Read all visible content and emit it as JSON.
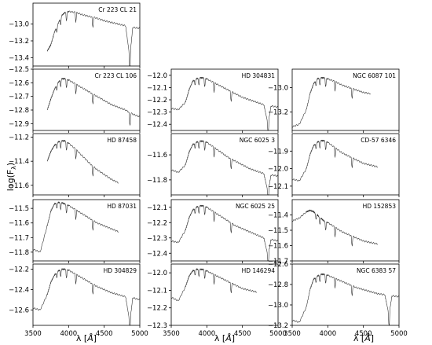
{
  "figure": {
    "ylabel": "log(Fλ)",
    "ylabel_main": "log(F",
    "ylabel_sub": "λ",
    "ylabel_close": ")"
  },
  "chart_data": [
    {
      "type": "line",
      "title": "Cr 223 CL 21",
      "ylim": [
        -13.5,
        -12.75
      ],
      "yticks": [
        -13.4,
        -13.2,
        -13.0
      ],
      "ytick_labels": [
        "−13.4",
        "−13.2",
        "−13.0"
      ],
      "xlim": [
        3500,
        5000
      ],
      "series": [
        {
          "name": "Cr 223 CL 21",
          "x": [
            3700,
            3750,
            3800,
            3850,
            3900,
            3950,
            4000,
            4100,
            4200,
            4300,
            4400,
            4500,
            4600,
            4700,
            4800,
            4860,
            4900,
            5000
          ],
          "y": [
            -13.32,
            -13.25,
            -13.1,
            -13.0,
            -12.9,
            -12.86,
            -12.85,
            -12.86,
            -12.89,
            -12.91,
            -12.93,
            -12.96,
            -12.98,
            -13.0,
            -13.02,
            -13.4,
            -13.04,
            -13.05
          ]
        }
      ]
    },
    {
      "type": "line",
      "title": "Cr 223 CL 106",
      "ylim": [
        -12.95,
        -12.5
      ],
      "yticks": [
        -12.9,
        -12.8,
        -12.7,
        -12.6,
        -12.5
      ],
      "ytick_labels": [
        "−12.9",
        "−12.8",
        "−12.7",
        "−12.6",
        "−12.5"
      ],
      "xlim": [
        3500,
        5000
      ],
      "series": [
        {
          "name": "Cr 223 CL 106",
          "x": [
            3700,
            3750,
            3800,
            3850,
            3900,
            3950,
            4000,
            4100,
            4200,
            4300,
            4400,
            4500,
            4600,
            4700,
            4800,
            4900,
            5000
          ],
          "y": [
            -12.8,
            -12.72,
            -12.65,
            -12.6,
            -12.57,
            -12.57,
            -12.58,
            -12.61,
            -12.64,
            -12.67,
            -12.7,
            -12.73,
            -12.76,
            -12.78,
            -12.8,
            -12.83,
            -12.85
          ]
        }
      ]
    },
    {
      "type": "line",
      "title": "HD 304831",
      "ylim": [
        -12.45,
        -11.95
      ],
      "yticks": [
        -12.4,
        -12.3,
        -12.2,
        -12.1,
        -12.0
      ],
      "ytick_labels": [
        "−12.4",
        "−12.3",
        "−12.2",
        "−12.1",
        "−12.0"
      ],
      "xlim": [
        3500,
        5000
      ],
      "series": [
        {
          "name": "HD 304831",
          "x": [
            3500,
            3600,
            3700,
            3750,
            3800,
            3850,
            3900,
            3950,
            4000,
            4100,
            4200,
            4300,
            4400,
            4500,
            4600,
            4700,
            4800,
            4860,
            4900,
            5000
          ],
          "y": [
            -12.27,
            -12.28,
            -12.22,
            -12.12,
            -12.05,
            -12.03,
            -12.02,
            -12.02,
            -12.03,
            -12.06,
            -12.09,
            -12.12,
            -12.15,
            -12.18,
            -12.2,
            -12.22,
            -12.24,
            -12.4,
            -12.25,
            -12.26
          ]
        }
      ]
    },
    {
      "type": "line",
      "title": "NGC 6087 101",
      "ylim": [
        -13.35,
        -12.85
      ],
      "yticks": [
        -13.2,
        -13.0
      ],
      "ytick_labels": [
        "−13.2",
        "−13.0"
      ],
      "xlim": [
        3500,
        5000
      ],
      "series": [
        {
          "name": "NGC 6087 101",
          "x": [
            3500,
            3600,
            3700,
            3750,
            3800,
            3850,
            3900,
            3950,
            4000,
            4100,
            4200,
            4300,
            4400,
            4500,
            4600
          ],
          "y": [
            -13.32,
            -13.3,
            -13.18,
            -13.05,
            -12.97,
            -12.93,
            -12.92,
            -12.92,
            -12.93,
            -12.95,
            -12.98,
            -13.0,
            -13.02,
            -13.04,
            -13.05
          ]
        }
      ]
    },
    {
      "type": "line",
      "title": "HD 87458",
      "ylim": [
        -11.68,
        -11.17
      ],
      "yticks": [
        -11.6,
        -11.4,
        -11.2
      ],
      "ytick_labels": [
        "−11.6",
        "−11.4",
        "−11.2"
      ],
      "xlim": [
        3500,
        5000
      ],
      "series": [
        {
          "name": "HD 87458",
          "x": [
            3700,
            3750,
            3800,
            3850,
            3900,
            3950,
            4000,
            4100,
            4200,
            4300,
            4400,
            4500,
            4600,
            4700
          ],
          "y": [
            -11.4,
            -11.32,
            -11.27,
            -11.24,
            -11.23,
            -11.23,
            -11.25,
            -11.3,
            -11.36,
            -11.42,
            -11.47,
            -11.51,
            -11.55,
            -11.58
          ]
        }
      ]
    },
    {
      "type": "line",
      "title": "NGC 6025 3",
      "ylim": [
        -11.92,
        -11.43
      ],
      "yticks": [
        -11.8,
        -11.6
      ],
      "ytick_labels": [
        "−11.8",
        "−11.6"
      ],
      "xlim": [
        3500,
        5000
      ],
      "series": [
        {
          "name": "NGC 6025 3",
          "x": [
            3500,
            3600,
            3700,
            3750,
            3800,
            3850,
            3900,
            3950,
            4000,
            4100,
            4200,
            4300,
            4400,
            4500,
            4600,
            4700,
            4800,
            4860,
            4900,
            5000
          ],
          "y": [
            -11.72,
            -11.74,
            -11.68,
            -11.58,
            -11.52,
            -11.5,
            -11.49,
            -11.49,
            -11.5,
            -11.54,
            -11.58,
            -11.62,
            -11.65,
            -11.68,
            -11.71,
            -11.73,
            -11.75,
            -11.9,
            -11.76,
            -11.77
          ]
        }
      ]
    },
    {
      "type": "line",
      "title": "CD-57 6346",
      "ylim": [
        -12.15,
        -11.8
      ],
      "yticks": [
        -12.1,
        -12.0,
        -11.9
      ],
      "ytick_labels": [
        "−12.1",
        "−12.0",
        "−11.9"
      ],
      "xlim": [
        3500,
        5000
      ],
      "series": [
        {
          "name": "CD-57 6346",
          "x": [
            3500,
            3600,
            3700,
            3750,
            3800,
            3850,
            3900,
            3950,
            4000,
            4100,
            4200,
            4300,
            4400,
            4500,
            4600,
            4700
          ],
          "y": [
            -12.06,
            -12.07,
            -12.0,
            -11.92,
            -11.87,
            -11.85,
            -11.84,
            -11.84,
            -11.85,
            -11.88,
            -11.91,
            -11.93,
            -11.95,
            -11.97,
            -11.98,
            -11.99
          ]
        }
      ]
    },
    {
      "type": "line",
      "title": "HD 87031",
      "ylim": [
        -11.86,
        -11.44
      ],
      "yticks": [
        -11.8,
        -11.7,
        -11.6,
        -11.5
      ],
      "ytick_labels": [
        "−11.8",
        "−11.7",
        "−11.6",
        "−11.5"
      ],
      "xlim": [
        3500,
        5000
      ],
      "series": [
        {
          "name": "HD 87031",
          "x": [
            3500,
            3600,
            3700,
            3750,
            3800,
            3850,
            3900,
            3950,
            4000,
            4100,
            4200,
            4300,
            4400,
            4500,
            4600,
            4700
          ],
          "y": [
            -11.78,
            -11.8,
            -11.62,
            -11.52,
            -11.47,
            -11.46,
            -11.46,
            -11.47,
            -11.48,
            -11.51,
            -11.54,
            -11.57,
            -11.6,
            -11.62,
            -11.64,
            -11.66
          ]
        }
      ]
    },
    {
      "type": "line",
      "title": "NGC 6025 25",
      "ylim": [
        -12.45,
        -12.05
      ],
      "yticks": [
        -12.4,
        -12.3,
        -12.2,
        -12.1
      ],
      "ytick_labels": [
        "−12.4",
        "−12.3",
        "−12.2",
        "−12.1"
      ],
      "xlim": [
        3500,
        5000
      ],
      "series": [
        {
          "name": "NGC 6025 25",
          "x": [
            3500,
            3600,
            3700,
            3750,
            3800,
            3850,
            3900,
            3950,
            4000,
            4100,
            4200,
            4300,
            4400,
            4500,
            4600,
            4700,
            4800,
            4860,
            4900,
            5000
          ],
          "y": [
            -12.32,
            -12.33,
            -12.25,
            -12.17,
            -12.12,
            -12.1,
            -12.09,
            -12.09,
            -12.1,
            -12.13,
            -12.16,
            -12.19,
            -12.22,
            -12.24,
            -12.26,
            -12.28,
            -12.3,
            -12.42,
            -12.31,
            -12.32
          ]
        }
      ]
    },
    {
      "type": "line",
      "title": "HD 152853",
      "ylim": [
        -11.7,
        -11.3
      ],
      "yticks": [
        -11.7,
        -11.6,
        -11.5,
        -11.4
      ],
      "ytick_labels": [
        "−11.7",
        "−11.6",
        "−11.5",
        "−11.4"
      ],
      "xlim": [
        3500,
        5000
      ],
      "series": [
        {
          "name": "HD 152853",
          "x": [
            3500,
            3600,
            3700,
            3750,
            3800,
            3850,
            3900,
            3950,
            4000,
            4100,
            4200,
            4300,
            4400,
            4500,
            4600,
            4700
          ],
          "y": [
            -11.44,
            -11.42,
            -11.38,
            -11.37,
            -11.38,
            -11.4,
            -11.42,
            -11.44,
            -11.45,
            -11.48,
            -11.51,
            -11.53,
            -11.55,
            -11.57,
            -11.58,
            -11.59
          ]
        }
      ]
    },
    {
      "type": "line",
      "title": "HD 304829",
      "ylim": [
        -12.75,
        -12.15
      ],
      "yticks": [
        -12.6,
        -12.4,
        -12.2
      ],
      "ytick_labels": [
        "−12.6",
        "−12.4",
        "−12.2"
      ],
      "xlim": [
        3500,
        5000
      ],
      "series": [
        {
          "name": "HD 304829",
          "x": [
            3500,
            3600,
            3700,
            3750,
            3800,
            3850,
            3900,
            3950,
            4000,
            4100,
            4200,
            4300,
            4400,
            4500,
            4600,
            4700,
            4800,
            4860,
            4900,
            5000
          ],
          "y": [
            -12.58,
            -12.6,
            -12.45,
            -12.33,
            -12.26,
            -12.22,
            -12.2,
            -12.2,
            -12.21,
            -12.25,
            -12.29,
            -12.33,
            -12.37,
            -12.4,
            -12.43,
            -12.45,
            -12.47,
            -12.72,
            -12.48,
            -12.5
          ]
        }
      ]
    },
    {
      "type": "line",
      "title": "HD 146294",
      "ylim": [
        -12.3,
        -11.95
      ],
      "yticks": [
        -12.3,
        -12.2,
        -12.1,
        -12.0
      ],
      "ytick_labels": [
        "−12.3",
        "−12.2",
        "−12.1",
        "−12.0"
      ],
      "xlim": [
        3500,
        5000
      ],
      "series": [
        {
          "name": "HD 146294",
          "x": [
            3500,
            3600,
            3700,
            3750,
            3800,
            3850,
            3900,
            3950,
            4000,
            4100,
            4200,
            4300,
            4400,
            4500,
            4600,
            4700
          ],
          "y": [
            -12.14,
            -12.16,
            -12.08,
            -12.02,
            -11.99,
            -11.98,
            -11.98,
            -11.98,
            -11.99,
            -12.01,
            -12.03,
            -12.05,
            -12.07,
            -12.09,
            -12.1,
            -12.11
          ]
        }
      ]
    },
    {
      "type": "line",
      "title": "NGC 6383 57",
      "ylim": [
        -13.2,
        -12.6
      ],
      "yticks": [
        -13.2,
        -13.0,
        -12.8,
        -12.6
      ],
      "ytick_labels": [
        "−13.2",
        "−13.0",
        "−12.8",
        "−12.6"
      ],
      "xlim": [
        3500,
        5000
      ],
      "series": [
        {
          "name": "NGC 6383 57",
          "x": [
            3500,
            3600,
            3700,
            3750,
            3800,
            3850,
            3900,
            3950,
            4000,
            4100,
            4200,
            4300,
            4400,
            4500,
            4600,
            4700,
            4800,
            4860,
            4900,
            5000
          ],
          "y": [
            -13.15,
            -13.17,
            -13.02,
            -12.85,
            -12.75,
            -12.72,
            -12.7,
            -12.7,
            -12.71,
            -12.74,
            -12.77,
            -12.8,
            -12.83,
            -12.85,
            -12.87,
            -12.89,
            -12.9,
            -13.1,
            -12.91,
            -12.92
          ]
        }
      ]
    }
  ],
  "xaxis": {
    "label": "λ [Å]",
    "label_main": "λ [",
    "label_unit": "Å",
    "label_close": "]",
    "ticks": [
      3500,
      4000,
      4500,
      5000
    ],
    "tick_labels": [
      "3500",
      "4000",
      "4500",
      "5000"
    ]
  }
}
